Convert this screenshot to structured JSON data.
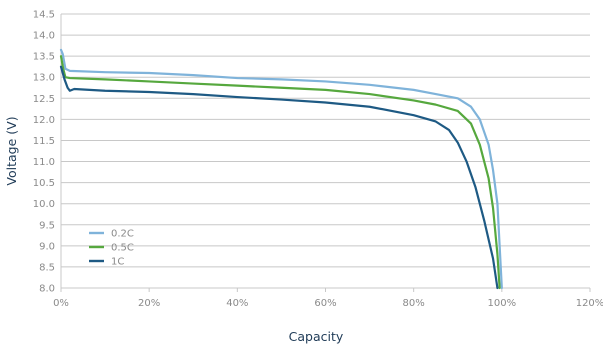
{
  "chart_data": {
    "type": "line",
    "title": "",
    "xlabel": "Capacity",
    "ylabel": "Voltage (V)",
    "xlim": [
      0,
      120
    ],
    "ylim": [
      8.0,
      14.5
    ],
    "xticks": [
      0,
      20,
      40,
      60,
      80,
      100,
      120
    ],
    "xtick_labels": [
      "0%",
      "20%",
      "40%",
      "60%",
      "80%",
      "100%",
      "120%"
    ],
    "yticks": [
      8.0,
      8.5,
      9.0,
      9.5,
      10.0,
      10.5,
      11.0,
      11.5,
      12.0,
      12.5,
      13.0,
      13.5,
      14.0,
      14.5
    ],
    "ytick_labels": [
      "8.0",
      "8.5",
      "9.0",
      "9.5",
      "10.0",
      "10.5",
      "11.0",
      "11.5",
      "12.0",
      "12.5",
      "13.0",
      "13.5",
      "14.0",
      "14.5"
    ],
    "grid": "horizontal",
    "legend_position": "lower-left",
    "series": [
      {
        "name": "0.2C",
        "color": "#7fb3da",
        "points": [
          [
            0,
            13.65
          ],
          [
            0.4,
            13.55
          ],
          [
            1,
            13.2
          ],
          [
            2,
            13.15
          ],
          [
            10,
            13.12
          ],
          [
            20,
            13.1
          ],
          [
            30,
            13.05
          ],
          [
            40,
            12.98
          ],
          [
            50,
            12.95
          ],
          [
            60,
            12.9
          ],
          [
            70,
            12.82
          ],
          [
            80,
            12.7
          ],
          [
            85,
            12.6
          ],
          [
            90,
            12.5
          ],
          [
            93,
            12.3
          ],
          [
            95,
            12.0
          ],
          [
            97,
            11.4
          ],
          [
            98,
            10.8
          ],
          [
            99,
            10.0
          ],
          [
            99.5,
            9.0
          ],
          [
            100,
            8.0
          ]
        ]
      },
      {
        "name": "0.5C",
        "color": "#56a83e",
        "points": [
          [
            0,
            13.5
          ],
          [
            0.5,
            13.2
          ],
          [
            1,
            13.0
          ],
          [
            2,
            12.98
          ],
          [
            10,
            12.95
          ],
          [
            20,
            12.9
          ],
          [
            30,
            12.85
          ],
          [
            40,
            12.8
          ],
          [
            50,
            12.75
          ],
          [
            60,
            12.7
          ],
          [
            70,
            12.6
          ],
          [
            80,
            12.45
          ],
          [
            85,
            12.35
          ],
          [
            90,
            12.2
          ],
          [
            93,
            11.9
          ],
          [
            95,
            11.4
          ],
          [
            97,
            10.6
          ],
          [
            98,
            9.9
          ],
          [
            99,
            8.8
          ],
          [
            99.5,
            8.0
          ]
        ]
      },
      {
        "name": "1C",
        "color": "#1e5a84",
        "points": [
          [
            0,
            13.25
          ],
          [
            0.8,
            12.95
          ],
          [
            1.5,
            12.75
          ],
          [
            2,
            12.68
          ],
          [
            3,
            12.72
          ],
          [
            10,
            12.68
          ],
          [
            20,
            12.65
          ],
          [
            30,
            12.6
          ],
          [
            40,
            12.53
          ],
          [
            50,
            12.47
          ],
          [
            60,
            12.4
          ],
          [
            70,
            12.3
          ],
          [
            80,
            12.1
          ],
          [
            85,
            11.95
          ],
          [
            88,
            11.75
          ],
          [
            90,
            11.45
          ],
          [
            92,
            11.0
          ],
          [
            94,
            10.4
          ],
          [
            96,
            9.6
          ],
          [
            98,
            8.7
          ],
          [
            99,
            8.0
          ]
        ]
      }
    ]
  }
}
